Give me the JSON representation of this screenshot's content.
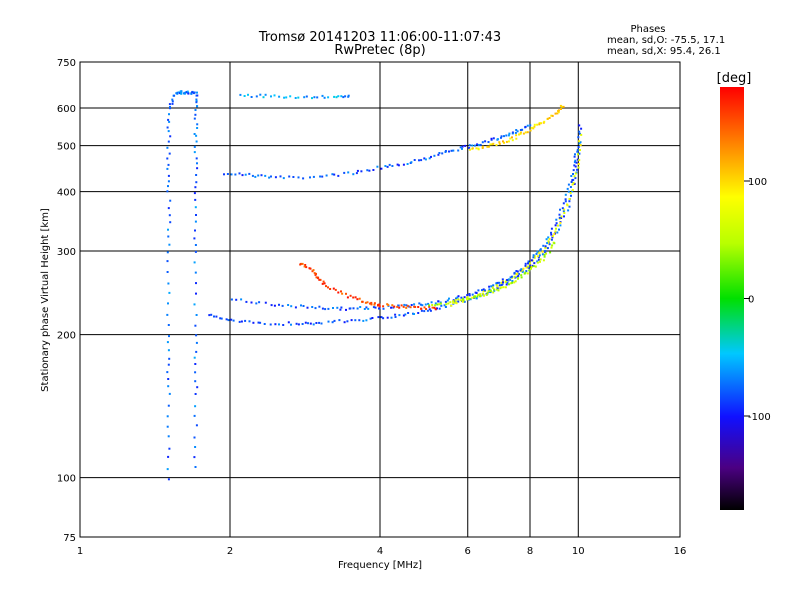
{
  "chart_data": {
    "type": "scatter",
    "title": "Tromsø 20141203 11:06:00-11:07:43",
    "subtitle": "RwPretec (8p)",
    "xlabel": "Frequency [MHz]",
    "ylabel": "Stationary phase Virtual Height [km]",
    "x_scale": "log",
    "y_scale": "log",
    "xlim": [
      1,
      16
    ],
    "ylim": [
      75,
      750
    ],
    "x_ticks": [
      1,
      2,
      4,
      6,
      8,
      10,
      16
    ],
    "x_tick_labels": [
      "1",
      "2",
      "4",
      "6",
      "8",
      "10",
      "16"
    ],
    "y_ticks": [
      75,
      100,
      200,
      300,
      400,
      500,
      600,
      750
    ],
    "y_tick_labels": [
      "75",
      "100",
      "200",
      "300",
      "400",
      "500",
      "600",
      "750"
    ],
    "grid": true,
    "phases": {
      "title": "Phases",
      "line1": "mean, sd,O: -75.5, 17.1",
      "line2": "mean, sd,X: 95.4, 26.1"
    },
    "colorbar": {
      "label": "[deg]",
      "range": [
        -180,
        180
      ],
      "ticks": [
        100,
        0,
        -100
      ],
      "tick_labels": [
        "100",
        "0",
        "-100"
      ]
    },
    "traces": [
      {
        "phase": -80,
        "points": [
          [
            1.95,
            440
          ],
          [
            2.2,
            435
          ],
          [
            2.5,
            430
          ],
          [
            3.0,
            432
          ],
          [
            3.5,
            440
          ],
          [
            4.0,
            452
          ],
          [
            4.5,
            462
          ],
          [
            5.0,
            475
          ],
          [
            5.5,
            490
          ],
          [
            6.0,
            500
          ],
          [
            6.5,
            510
          ],
          [
            7.0,
            525
          ],
          [
            7.5,
            540
          ],
          [
            8.0,
            555
          ]
        ]
      },
      {
        "phase": 100,
        "points": [
          [
            6.0,
            490
          ],
          [
            6.5,
            500
          ],
          [
            7.0,
            510
          ],
          [
            7.5,
            525
          ],
          [
            8.0,
            545
          ],
          [
            8.5,
            565
          ],
          [
            9.0,
            590
          ],
          [
            9.3,
            610
          ]
        ]
      },
      {
        "phase": -80,
        "points": [
          [
            1.8,
            222
          ],
          [
            2.0,
            215
          ],
          [
            2.3,
            212
          ],
          [
            2.7,
            212
          ],
          [
            3.0,
            213
          ],
          [
            3.5,
            215
          ],
          [
            4.0,
            218
          ],
          [
            4.5,
            222
          ],
          [
            5.0,
            226
          ],
          [
            5.5,
            232
          ],
          [
            6.0,
            238
          ],
          [
            6.5,
            245
          ],
          [
            7.0,
            255
          ],
          [
            7.5,
            265
          ],
          [
            8.0,
            280
          ],
          [
            8.5,
            300
          ],
          [
            9.0,
            330
          ],
          [
            9.5,
            375
          ],
          [
            9.8,
            430
          ],
          [
            10.0,
            500
          ],
          [
            10.05,
            560
          ]
        ]
      },
      {
        "phase": 75,
        "points": [
          [
            5.5,
            232
          ],
          [
            6.0,
            240
          ],
          [
            6.5,
            248
          ],
          [
            7.0,
            258
          ],
          [
            7.5,
            270
          ],
          [
            8.0,
            285
          ],
          [
            8.5,
            305
          ],
          [
            9.0,
            335
          ],
          [
            9.5,
            380
          ],
          [
            9.9,
            450
          ],
          [
            10.1,
            540
          ]
        ]
      },
      {
        "phase": -80,
        "points": [
          [
            2.0,
            240
          ],
          [
            2.4,
            232
          ],
          [
            2.8,
            230
          ],
          [
            3.2,
            228
          ],
          [
            3.6,
            228
          ],
          [
            4.0,
            229
          ],
          [
            4.5,
            231
          ],
          [
            5.0,
            234
          ],
          [
            5.5,
            238
          ],
          [
            6.0,
            243
          ],
          [
            6.5,
            250
          ],
          [
            7.0,
            260
          ],
          [
            7.5,
            272
          ],
          [
            8.0,
            288
          ],
          [
            8.5,
            310
          ],
          [
            9.0,
            345
          ],
          [
            9.4,
            390
          ],
          [
            9.7,
            440
          ],
          [
            9.9,
            500
          ]
        ]
      },
      {
        "phase": 155,
        "points": [
          [
            2.75,
            285
          ],
          [
            2.9,
            275
          ],
          [
            3.0,
            262
          ],
          [
            3.2,
            250
          ],
          [
            3.5,
            240
          ],
          [
            3.8,
            234
          ],
          [
            4.0,
            232
          ],
          [
            4.4,
            230
          ],
          [
            4.8,
            229
          ],
          [
            5.2,
            229
          ]
        ]
      },
      {
        "phase": 50,
        "points": [
          [
            5.0,
            232
          ],
          [
            5.5,
            235
          ],
          [
            6.0,
            240
          ],
          [
            6.5,
            245
          ],
          [
            7.0,
            252
          ],
          [
            7.5,
            262
          ],
          [
            8.0,
            275
          ],
          [
            8.5,
            292
          ],
          [
            9.0,
            318
          ]
        ]
      },
      {
        "phase": -60,
        "points": [
          [
            2.1,
            640
          ],
          [
            2.4,
            638
          ],
          [
            2.8,
            637
          ],
          [
            3.2,
            635
          ],
          [
            3.5,
            636
          ]
        ]
      },
      {
        "phase": -75,
        "points": [
          [
            1.5,
            100
          ],
          [
            1.5,
            150
          ],
          [
            1.5,
            200
          ],
          [
            1.5,
            300
          ],
          [
            1.5,
            400
          ],
          [
            1.5,
            500
          ],
          [
            1.5,
            600
          ],
          [
            1.55,
            650
          ],
          [
            1.6,
            650
          ],
          [
            1.65,
            650
          ],
          [
            1.7,
            650
          ],
          [
            1.7,
            600
          ],
          [
            1.7,
            500
          ],
          [
            1.7,
            400
          ],
          [
            1.7,
            300
          ],
          [
            1.7,
            200
          ],
          [
            1.7,
            150
          ],
          [
            1.7,
            100
          ]
        ]
      }
    ]
  }
}
